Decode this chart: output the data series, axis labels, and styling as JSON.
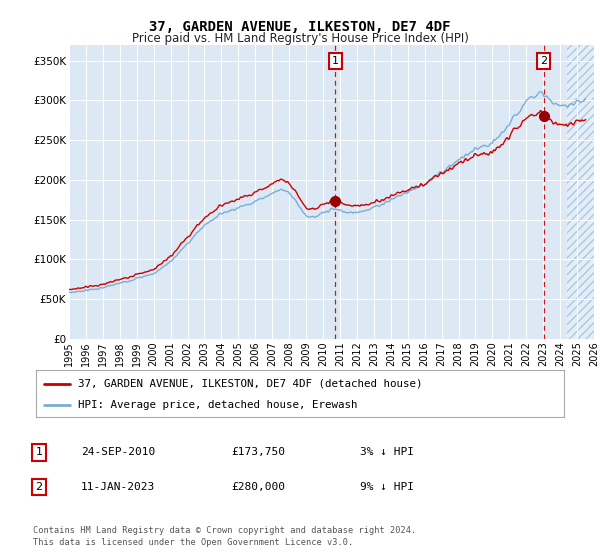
{
  "title": "37, GARDEN AVENUE, ILKESTON, DE7 4DF",
  "subtitle": "Price paid vs. HM Land Registry's House Price Index (HPI)",
  "bg_color": "#dce9f5",
  "hpi_color": "#7dadd4",
  "price_color": "#cc0000",
  "dashed_line_color": "#cc0000",
  "sale1_date_num": 2010.73,
  "sale1_price": 173750,
  "sale2_date_num": 2023.03,
  "sale2_price": 280000,
  "xmin": 1995,
  "xmax": 2026,
  "ymin": 0,
  "ymax": 370000,
  "yticks": [
    0,
    50000,
    100000,
    150000,
    200000,
    250000,
    300000,
    350000
  ],
  "ytick_labels": [
    "£0",
    "£50K",
    "£100K",
    "£150K",
    "£200K",
    "£250K",
    "£300K",
    "£350K"
  ],
  "xticks": [
    1995,
    1996,
    1997,
    1998,
    1999,
    2000,
    2001,
    2002,
    2003,
    2004,
    2005,
    2006,
    2007,
    2008,
    2009,
    2010,
    2011,
    2012,
    2013,
    2014,
    2015,
    2016,
    2017,
    2018,
    2019,
    2020,
    2021,
    2022,
    2023,
    2024,
    2025,
    2026
  ],
  "legend_line1": "37, GARDEN AVENUE, ILKESTON, DE7 4DF (detached house)",
  "legend_line2": "HPI: Average price, detached house, Erewash",
  "note1_label": "1",
  "note1_date": "24-SEP-2010",
  "note1_price": "£173,750",
  "note1_hpi": "3% ↓ HPI",
  "note2_label": "2",
  "note2_date": "11-JAN-2023",
  "note2_price": "£280,000",
  "note2_hpi": "9% ↓ HPI",
  "footer": "Contains HM Land Registry data © Crown copyright and database right 2024.\nThis data is licensed under the Open Government Licence v3.0.",
  "hatch_start": 2024.42
}
